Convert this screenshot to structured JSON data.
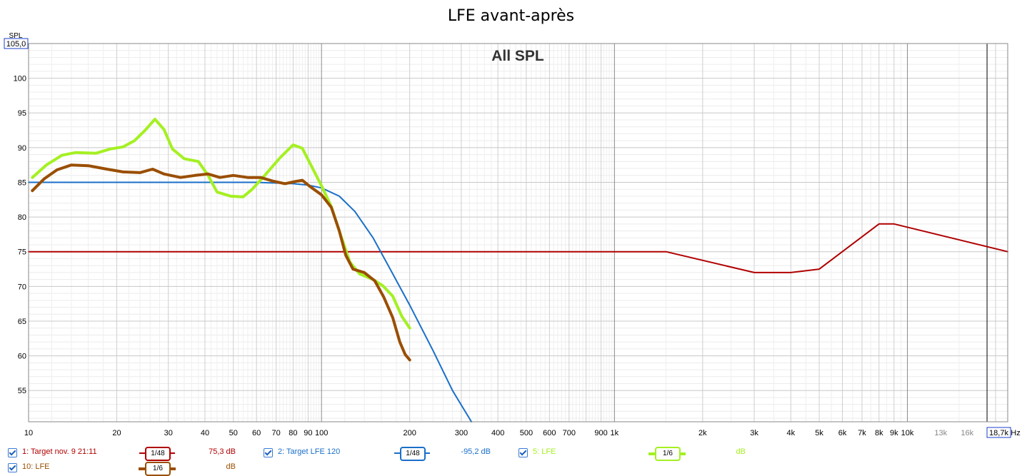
{
  "window_title": "LFE avant-après",
  "chart_data": {
    "type": "line",
    "overlay_title": "All SPL",
    "ylabel": "SPL",
    "xlabel": "Hz",
    "x_scale": "log",
    "xlim": [
      10,
      22000
    ],
    "ylim": [
      50.5,
      105
    ],
    "y_top_box": "105,0",
    "x_right_box": "18,7k",
    "y_ticks": [
      55,
      60,
      65,
      70,
      75,
      80,
      85,
      90,
      95,
      100
    ],
    "x_tick_labels": [
      {
        "v": 10,
        "t": "10"
      },
      {
        "v": 20,
        "t": "20"
      },
      {
        "v": 30,
        "t": "30"
      },
      {
        "v": 40,
        "t": "40"
      },
      {
        "v": 50,
        "t": "50"
      },
      {
        "v": 60,
        "t": "60"
      },
      {
        "v": 70,
        "t": "70"
      },
      {
        "v": 80,
        "t": "80"
      },
      {
        "v": 90,
        "t": "90"
      },
      {
        "v": 100,
        "t": "100"
      },
      {
        "v": 200,
        "t": "200"
      },
      {
        "v": 300,
        "t": "300"
      },
      {
        "v": 400,
        "t": "400"
      },
      {
        "v": 500,
        "t": "500"
      },
      {
        "v": 600,
        "t": "600"
      },
      {
        "v": 700,
        "t": "700"
      },
      {
        "v": 900,
        "t": "900"
      },
      {
        "v": 1000,
        "t": "1k"
      },
      {
        "v": 2000,
        "t": "2k"
      },
      {
        "v": 3000,
        "t": "3k"
      },
      {
        "v": 4000,
        "t": "4k"
      },
      {
        "v": 5000,
        "t": "5k"
      },
      {
        "v": 6000,
        "t": "6k"
      },
      {
        "v": 7000,
        "t": "7k"
      },
      {
        "v": 8000,
        "t": "8k"
      },
      {
        "v": 9000,
        "t": "9k"
      },
      {
        "v": 10000,
        "t": "10k"
      },
      {
        "v": 13000,
        "t": "13k"
      },
      {
        "v": 16000,
        "t": "16k"
      }
    ],
    "grid": true,
    "series": [
      {
        "name": "1: Target nov. 9 21:11",
        "color": "#b00000",
        "width": 2,
        "points": [
          [
            10,
            75
          ],
          [
            1500,
            75
          ],
          [
            3000,
            72
          ],
          [
            4000,
            72
          ],
          [
            5000,
            72.5
          ],
          [
            8000,
            79
          ],
          [
            9000,
            79
          ],
          [
            22000,
            75
          ]
        ]
      },
      {
        "name": "2: Target LFE 120",
        "color": "#1a6fc9",
        "width": 2,
        "points": [
          [
            10,
            85
          ],
          [
            60,
            85
          ],
          [
            80,
            84.8
          ],
          [
            90,
            84.6
          ],
          [
            100,
            84.2
          ],
          [
            115,
            83
          ],
          [
            130,
            80.8
          ],
          [
            150,
            77
          ],
          [
            170,
            72.8
          ],
          [
            200,
            67.3
          ],
          [
            240,
            60.8
          ],
          [
            280,
            55
          ],
          [
            325,
            50.5
          ]
        ]
      },
      {
        "name": "5: LFE",
        "color": "#a4f021",
        "width": 4,
        "points": [
          [
            10.3,
            85.7
          ],
          [
            11.5,
            87.5
          ],
          [
            13,
            88.9
          ],
          [
            14.5,
            89.3
          ],
          [
            17,
            89.2
          ],
          [
            19,
            89.8
          ],
          [
            21,
            90.1
          ],
          [
            23,
            91
          ],
          [
            25,
            92.5
          ],
          [
            27,
            94.1
          ],
          [
            29,
            92.6
          ],
          [
            31,
            89.8
          ],
          [
            34,
            88.4
          ],
          [
            38,
            88
          ],
          [
            41,
            86
          ],
          [
            44,
            83.6
          ],
          [
            49,
            83
          ],
          [
            54,
            82.9
          ],
          [
            58,
            84
          ],
          [
            64,
            86
          ],
          [
            72,
            88.5
          ],
          [
            80,
            90.4
          ],
          [
            86,
            89.9
          ],
          [
            92,
            87.5
          ],
          [
            100,
            84.5
          ],
          [
            108,
            81.5
          ],
          [
            116,
            77.5
          ],
          [
            125,
            73.5
          ],
          [
            135,
            71.8
          ],
          [
            150,
            71
          ],
          [
            162,
            70.1
          ],
          [
            175,
            68.6
          ],
          [
            188,
            65.7
          ],
          [
            200,
            64
          ]
        ]
      },
      {
        "name": "10: LFE",
        "color": "#9a4e02",
        "width": 4,
        "points": [
          [
            10.3,
            83.8
          ],
          [
            11.3,
            85.5
          ],
          [
            12.5,
            86.8
          ],
          [
            14,
            87.5
          ],
          [
            16,
            87.4
          ],
          [
            18.5,
            86.9
          ],
          [
            21,
            86.5
          ],
          [
            24,
            86.4
          ],
          [
            26.5,
            86.9
          ],
          [
            29,
            86.2
          ],
          [
            33,
            85.7
          ],
          [
            37,
            86
          ],
          [
            41,
            86.2
          ],
          [
            45,
            85.7
          ],
          [
            50,
            86
          ],
          [
            56,
            85.7
          ],
          [
            62,
            85.7
          ],
          [
            68,
            85.2
          ],
          [
            75,
            84.8
          ],
          [
            81,
            85.1
          ],
          [
            86,
            85.3
          ],
          [
            92,
            84.3
          ],
          [
            100,
            83.2
          ],
          [
            108,
            81.4
          ],
          [
            115,
            78
          ],
          [
            121,
            74.5
          ],
          [
            128,
            72.5
          ],
          [
            140,
            72
          ],
          [
            152,
            70.8
          ],
          [
            163,
            68.5
          ],
          [
            175,
            65.5
          ],
          [
            185,
            62
          ],
          [
            193,
            60.2
          ],
          [
            200,
            59.4
          ]
        ]
      }
    ]
  },
  "legend": [
    {
      "checked": true,
      "name": "1: Target nov. 9 21:11",
      "smoothing": "1/48",
      "value": "75,3 dB",
      "color": "#b00000"
    },
    {
      "checked": true,
      "name": "2: Target LFE 120",
      "smoothing": "1/48",
      "value": "-95,2 dB",
      "color": "#1a6fc9"
    },
    {
      "checked": true,
      "name": "5: LFE",
      "smoothing": "1/6",
      "value": "dB",
      "color": "#a4f021"
    },
    {
      "checked": true,
      "name": "10: LFE",
      "smoothing": "1/6",
      "value": "dB",
      "color": "#9a4e02"
    }
  ]
}
